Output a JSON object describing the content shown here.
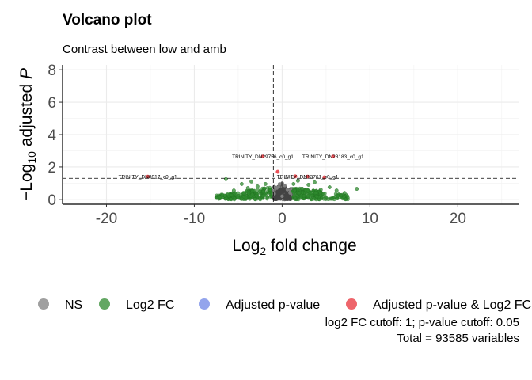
{
  "chart_data": {
    "type": "scatter",
    "title": "Volcano plot",
    "subtitle": "Contrast between low and amb",
    "xlabel": {
      "base": "Log",
      "sub": "2",
      "rest": " fold change"
    },
    "ylabel": {
      "prefix": "−Log",
      "sub": "10",
      "rest": " adjusted ",
      "italic": "P"
    },
    "xlim": [
      -25,
      27
    ],
    "ylim": [
      -0.3,
      8.3
    ],
    "x_ticks": [
      -20,
      -10,
      0,
      10,
      20
    ],
    "y_ticks": [
      0,
      2,
      4,
      6,
      8
    ],
    "grid": true,
    "legend_position": "bottom",
    "cutoffs": {
      "fc": 1,
      "p_line_y": 1.3
    },
    "legend": [
      {
        "name": "NS",
        "color": "#7f7f7f"
      },
      {
        "name": "Log2 FC",
        "color": "#2f8a2f"
      },
      {
        "name": "Adjusted p-value",
        "color": "#6f86e6"
      },
      {
        "name": "Adjusted p-value & Log2 FC",
        "color": "#e8323a"
      }
    ],
    "caption": [
      "log2 FC cutoff: 1; p-value cutoff: 0.05",
      "Total = 93585 variables"
    ],
    "labeled_points": [
      {
        "label": "TRINITY_DN29756_c0_g1",
        "x": -2.2,
        "y": 2.65
      },
      {
        "label": "TRINITY_DN28183_c0_g1",
        "x": 5.8,
        "y": 2.65
      },
      {
        "label": "TRINITY_DN8917_c0_g1",
        "x": -15.3,
        "y": 1.4
      },
      {
        "label": "TRINITY_DN13761_c0_g1",
        "x": 2.9,
        "y": 1.4
      }
    ],
    "significant_points": [
      {
        "x": -2.2,
        "y": 2.65
      },
      {
        "x": 5.8,
        "y": 2.65
      },
      {
        "x": -15.3,
        "y": 1.4
      },
      {
        "x": 2.9,
        "y": 1.4
      },
      {
        "x": -0.5,
        "y": 1.7
      },
      {
        "x": 1.5,
        "y": 1.42
      },
      {
        "x": 4.8,
        "y": 1.36
      }
    ],
    "fc_points": [
      {
        "x": -6.4,
        "y": 1.25
      },
      {
        "x": -5.5,
        "y": 0.55
      },
      {
        "x": -4.6,
        "y": 0.95
      },
      {
        "x": -3.9,
        "y": 0.7
      },
      {
        "x": -3.5,
        "y": 1.1
      },
      {
        "x": -2.8,
        "y": 0.8
      },
      {
        "x": -2.5,
        "y": 0.5
      },
      {
        "x": -1.9,
        "y": 0.95
      },
      {
        "x": -1.4,
        "y": 0.6
      },
      {
        "x": 1.3,
        "y": 0.95
      },
      {
        "x": 1.8,
        "y": 1.15
      },
      {
        "x": 2.3,
        "y": 0.65
      },
      {
        "x": 3.0,
        "y": 0.9
      },
      {
        "x": 3.7,
        "y": 1.05
      },
      {
        "x": 4.4,
        "y": 0.6
      },
      {
        "x": 5.4,
        "y": 0.75
      },
      {
        "x": 6.2,
        "y": 0.55
      },
      {
        "x": 7.1,
        "y": 0.4
      },
      {
        "x": 8.5,
        "y": 0.65
      }
    ],
    "ns_points": [
      {
        "x": -0.9,
        "y": 0.35
      },
      {
        "x": -0.6,
        "y": 0.7
      },
      {
        "x": -0.3,
        "y": 0.95
      },
      {
        "x": 0.0,
        "y": 0.2
      },
      {
        "x": 0.3,
        "y": 0.85
      },
      {
        "x": 0.6,
        "y": 0.6
      },
      {
        "x": 0.9,
        "y": 0.4
      }
    ]
  }
}
